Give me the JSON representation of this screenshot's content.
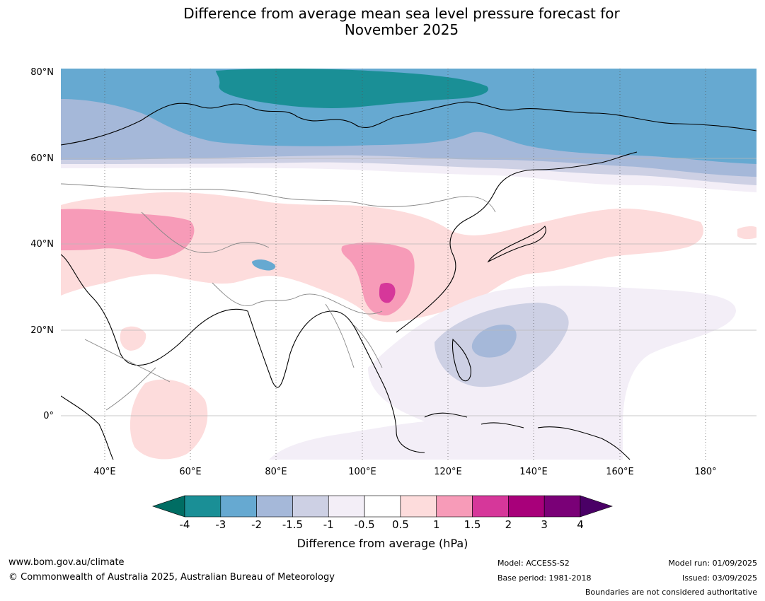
{
  "title": {
    "line1": "Difference from average mean sea level pressure forecast for",
    "line2": "November 2025"
  },
  "map": {
    "lat_labels": [
      "80°N",
      "60°N",
      "40°N",
      "20°N",
      "0°"
    ],
    "lon_labels": [
      "40°E",
      "60°E",
      "80°E",
      "100°E",
      "120°E",
      "140°E",
      "160°E",
      "180°"
    ]
  },
  "colorbar": {
    "title": "Difference from average (hPa)",
    "ticks": [
      "-4",
      "-3",
      "-2",
      "-1.5",
      "-1",
      "-0.5",
      "0.5",
      "1",
      "1.5",
      "2",
      "3",
      "4"
    ],
    "colors": [
      "#1a8f96",
      "#66a9d1",
      "#a5b8d9",
      "#cdd0e4",
      "#f3eef7",
      "#ffffff",
      "#fddcdc",
      "#f79bb8",
      "#d6379a",
      "#a8007a",
      "#7a0077"
    ],
    "low_extend_color": "#006d63",
    "high_extend_color": "#4a0066"
  },
  "footer": {
    "website": "www.bom.gov.au/climate",
    "copyright": "© Commonwealth of Australia 2025, Australian Bureau of Meteorology",
    "model": "Model: ACCESS-S2",
    "base_period": "Base period: 1981-2018",
    "model_run": "Model run: 01/09/2025",
    "issued": "Issued: 03/09/2025",
    "boundaries_note": "Boundaries are not considered authoritative"
  }
}
